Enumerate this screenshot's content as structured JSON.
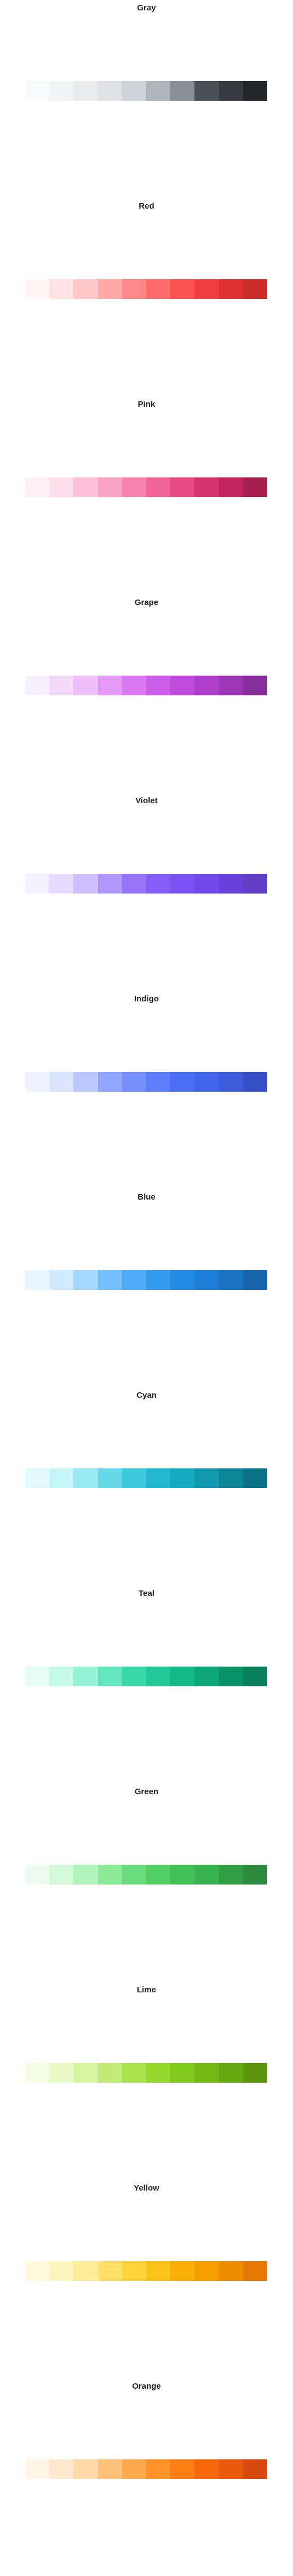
{
  "palettes": [
    {
      "name": "Gray",
      "colors": [
        "#f8f9fa",
        "#f1f3f5",
        "#e9ecef",
        "#dee2e6",
        "#ced4da",
        "#adb5bd",
        "#868e96",
        "#495057",
        "#343a40",
        "#212529"
      ]
    },
    {
      "name": "Red",
      "colors": [
        "#fff5f5",
        "#ffe3e3",
        "#ffc9c9",
        "#ffa8a8",
        "#ff8787",
        "#ff6b6b",
        "#fa5252",
        "#f03e3e",
        "#e03131",
        "#c92a2a"
      ]
    },
    {
      "name": "Pink",
      "colors": [
        "#fff0f6",
        "#ffdeeb",
        "#fcc2d7",
        "#faa2c1",
        "#f783ac",
        "#f06595",
        "#e64980",
        "#d6336c",
        "#c2255c",
        "#a61e4d"
      ]
    },
    {
      "name": "Grape",
      "colors": [
        "#f8f0fc",
        "#f3d9fa",
        "#eebefa",
        "#e599f7",
        "#da77f2",
        "#cc5de8",
        "#be4bdb",
        "#ae3ec9",
        "#9c36b5",
        "#862e9c"
      ]
    },
    {
      "name": "Violet",
      "colors": [
        "#f3f0ff",
        "#e5dbff",
        "#d0bfff",
        "#b197fc",
        "#9775fa",
        "#845ef7",
        "#7950f2",
        "#7048e8",
        "#6741d9",
        "#5f3dc4"
      ]
    },
    {
      "name": "Indigo",
      "colors": [
        "#edf2ff",
        "#dbe4ff",
        "#bac8ff",
        "#91a7ff",
        "#748ffc",
        "#5c7cfa",
        "#4c6ef5",
        "#4263eb",
        "#3b5bdb",
        "#364fc7"
      ]
    },
    {
      "name": "Blue",
      "colors": [
        "#e7f5ff",
        "#d0ebff",
        "#a5d8ff",
        "#74c0fc",
        "#4dabf7",
        "#339af0",
        "#228be6",
        "#1c7ed6",
        "#1971c2",
        "#1864ab"
      ]
    },
    {
      "name": "Cyan",
      "colors": [
        "#e3fafc",
        "#c5f6fa",
        "#99e9f2",
        "#66d9e8",
        "#3bc9db",
        "#22b8cf",
        "#15aabf",
        "#1098ad",
        "#0c8599",
        "#0b7285"
      ]
    },
    {
      "name": "Teal",
      "colors": [
        "#e6fcf5",
        "#c3fae8",
        "#96f2d7",
        "#63e6be",
        "#38d9a9",
        "#20c997",
        "#12b886",
        "#0ca678",
        "#099268",
        "#087f5b"
      ]
    },
    {
      "name": "Green",
      "colors": [
        "#ebfbee",
        "#d3f9d8",
        "#b2f2bb",
        "#8ce99a",
        "#69db7c",
        "#51cf66",
        "#40c057",
        "#37b24d",
        "#2f9e44",
        "#2b8a3e"
      ]
    },
    {
      "name": "Lime",
      "colors": [
        "#f4fce3",
        "#e9fac8",
        "#d8f5a2",
        "#c0eb75",
        "#a9e34b",
        "#94d82d",
        "#82c91e",
        "#74b816",
        "#66a80f",
        "#5c940d"
      ]
    },
    {
      "name": "Yellow",
      "colors": [
        "#fff9db",
        "#fff3bf",
        "#ffec99",
        "#ffe066",
        "#ffd43b",
        "#fcc419",
        "#fab005",
        "#f59f00",
        "#f08c00",
        "#e67700"
      ]
    },
    {
      "name": "Orange",
      "colors": [
        "#fff4e6",
        "#ffe8cc",
        "#ffd8a8",
        "#ffc078",
        "#ffa94d",
        "#ff922b",
        "#fd7e14",
        "#f76707",
        "#e8590c",
        "#d9480f"
      ]
    }
  ]
}
